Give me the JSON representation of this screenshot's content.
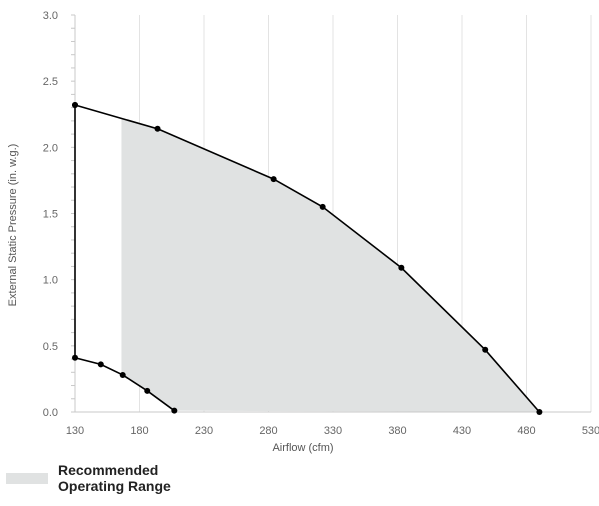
{
  "chart_data": {
    "type": "line",
    "xlabel": "Airflow (cfm)",
    "ylabel": "External Static Pressure (in. w.g.)",
    "xlim": [
      130,
      530
    ],
    "ylim": [
      0.0,
      3.0
    ],
    "x_ticks": [
      "130",
      "180",
      "230",
      "280",
      "330",
      "380",
      "430",
      "480",
      "530"
    ],
    "y_ticks": [
      "0.0",
      "0.5",
      "1.0",
      "1.5",
      "2.0",
      "2.5",
      "3.0"
    ],
    "grid": "vertical",
    "series": [
      {
        "x": [
          130,
          130,
          150,
          167,
          186,
          207
        ],
        "y": [
          2.32,
          0.41,
          0.36,
          0.28,
          0.16,
          0.01
        ],
        "color": "#000000"
      },
      {
        "x": [
          130,
          194,
          284,
          322,
          383,
          448,
          490
        ],
        "y": [
          2.32,
          2.14,
          1.76,
          1.55,
          1.09,
          0.47,
          0.0
        ],
        "color": "#000000"
      }
    ],
    "shaded_region": {
      "color": "#e0e2e2",
      "x_start": 166
    },
    "legend": {
      "label": "Recommended\nOperating Range",
      "placement": "bottom-left"
    }
  }
}
